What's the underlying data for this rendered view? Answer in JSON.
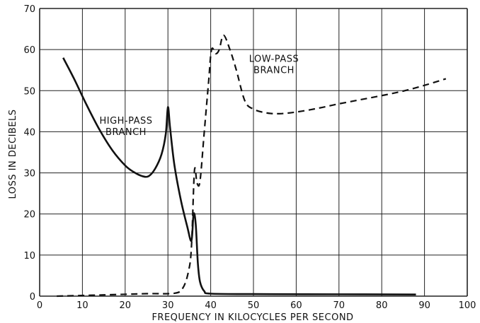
{
  "chart_data": {
    "type": "line",
    "title": "",
    "xlabel": "FREQUENCY IN KILOCYCLES PER SECOND",
    "ylabel": "LOSS IN DECIBELS",
    "xlim": [
      0,
      100
    ],
    "ylim": [
      0,
      70
    ],
    "xticks": [
      0,
      10,
      20,
      30,
      40,
      50,
      60,
      70,
      80,
      90,
      100
    ],
    "yticks": [
      0,
      10,
      20,
      30,
      40,
      50,
      60,
      70
    ],
    "grid": true,
    "annotations": [
      {
        "id": "high",
        "lines": [
          "HIGH-PASS",
          "BRANCH"
        ],
        "x": 30.5,
        "y": 42
      },
      {
        "id": "low",
        "lines": [
          "LOW-PASS",
          "BRANCH"
        ],
        "x": 55,
        "y": 57
      }
    ],
    "series": [
      {
        "id": "high-pass",
        "style": "solid",
        "points": [
          [
            5.5,
            58
          ],
          [
            8,
            53
          ],
          [
            11,
            46.5
          ],
          [
            14,
            40.5
          ],
          [
            17,
            35.5
          ],
          [
            20,
            31.8
          ],
          [
            22,
            30.2
          ],
          [
            24,
            29.2
          ],
          [
            25.5,
            29.2
          ],
          [
            27,
            31
          ],
          [
            28.5,
            34.5
          ],
          [
            29.5,
            39.5
          ],
          [
            30,
            46
          ],
          [
            30.5,
            41
          ],
          [
            31.5,
            32
          ],
          [
            33,
            23.5
          ],
          [
            34.5,
            17
          ],
          [
            35.5,
            13.5
          ],
          [
            36,
            20
          ],
          [
            36.5,
            17.5
          ],
          [
            37,
            8
          ],
          [
            37.5,
            3.5
          ],
          [
            38.5,
            1.2
          ],
          [
            40,
            0.6
          ],
          [
            50,
            0.5
          ],
          [
            70,
            0.45
          ],
          [
            88,
            0.4
          ]
        ]
      },
      {
        "id": "low-pass",
        "style": "dashed",
        "points": [
          [
            4,
            0
          ],
          [
            15,
            0.3
          ],
          [
            25,
            0.6
          ],
          [
            31.5,
            0.7
          ],
          [
            33.5,
            2
          ],
          [
            34.8,
            6
          ],
          [
            35.5,
            12
          ],
          [
            36.2,
            30.5
          ],
          [
            36.8,
            27.5
          ],
          [
            37.5,
            28
          ],
          [
            38.5,
            40
          ],
          [
            39.5,
            52
          ],
          [
            40.2,
            60
          ],
          [
            41.2,
            59
          ],
          [
            42,
            60
          ],
          [
            43,
            63.5
          ],
          [
            44.5,
            60
          ],
          [
            46,
            55
          ],
          [
            48,
            47.5
          ],
          [
            50,
            45.5
          ],
          [
            53,
            44.6
          ],
          [
            56,
            44.4
          ],
          [
            60,
            44.8
          ],
          [
            65,
            45.7
          ],
          [
            70,
            46.8
          ],
          [
            75,
            47.8
          ],
          [
            80,
            48.8
          ],
          [
            85,
            49.9
          ],
          [
            90,
            51.3
          ],
          [
            95,
            52.9
          ]
        ]
      }
    ]
  }
}
